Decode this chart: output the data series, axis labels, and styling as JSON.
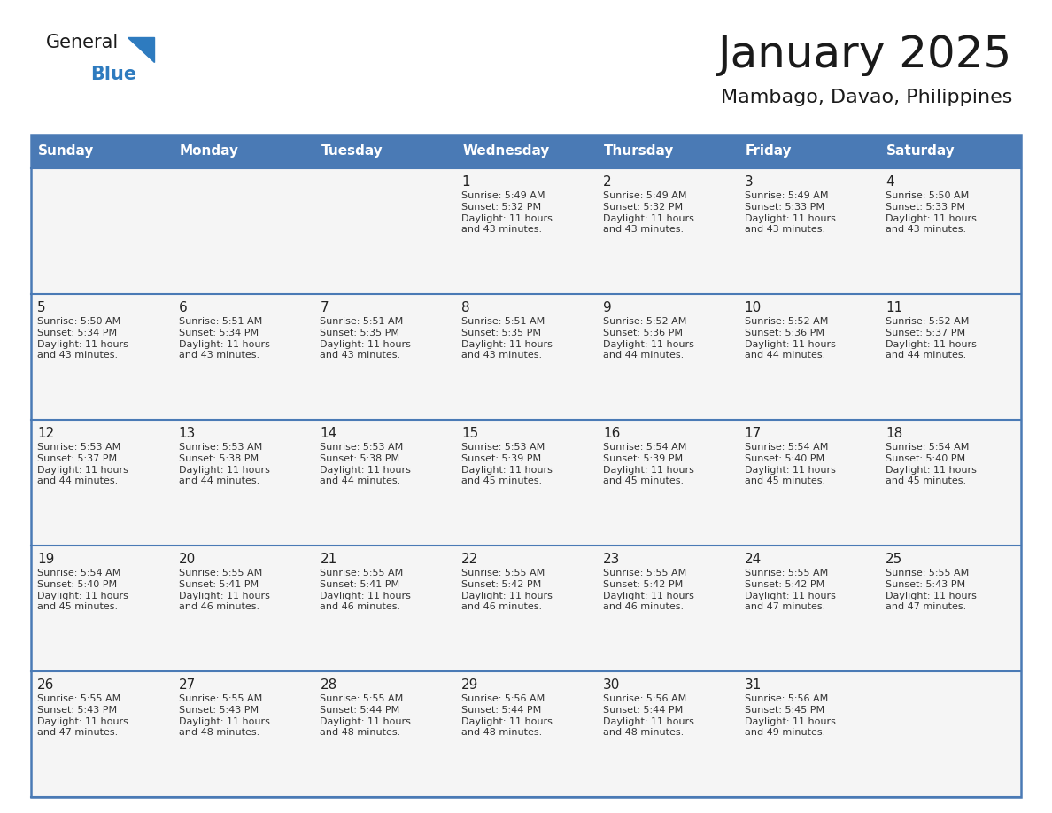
{
  "title": "January 2025",
  "subtitle": "Mambago, Davao, Philippines",
  "days_of_week": [
    "Sunday",
    "Monday",
    "Tuesday",
    "Wednesday",
    "Thursday",
    "Friday",
    "Saturday"
  ],
  "header_bg": "#4a7ab5",
  "header_text_color": "#FFFFFF",
  "row_bg": "#f5f5f5",
  "cell_text_color": "#333333",
  "day_num_color": "#222222",
  "row_border_color": "#4a7ab5",
  "title_color": "#1a1a1a",
  "subtitle_color": "#1a1a1a",
  "logo_general_color": "#1a1a1a",
  "logo_blue_color": "#2e7bbf",
  "calendar_data": [
    [
      {
        "day": 0,
        "info": ""
      },
      {
        "day": 0,
        "info": ""
      },
      {
        "day": 0,
        "info": ""
      },
      {
        "day": 1,
        "info": "Sunrise: 5:49 AM\nSunset: 5:32 PM\nDaylight: 11 hours\nand 43 minutes."
      },
      {
        "day": 2,
        "info": "Sunrise: 5:49 AM\nSunset: 5:32 PM\nDaylight: 11 hours\nand 43 minutes."
      },
      {
        "day": 3,
        "info": "Sunrise: 5:49 AM\nSunset: 5:33 PM\nDaylight: 11 hours\nand 43 minutes."
      },
      {
        "day": 4,
        "info": "Sunrise: 5:50 AM\nSunset: 5:33 PM\nDaylight: 11 hours\nand 43 minutes."
      }
    ],
    [
      {
        "day": 5,
        "info": "Sunrise: 5:50 AM\nSunset: 5:34 PM\nDaylight: 11 hours\nand 43 minutes."
      },
      {
        "day": 6,
        "info": "Sunrise: 5:51 AM\nSunset: 5:34 PM\nDaylight: 11 hours\nand 43 minutes."
      },
      {
        "day": 7,
        "info": "Sunrise: 5:51 AM\nSunset: 5:35 PM\nDaylight: 11 hours\nand 43 minutes."
      },
      {
        "day": 8,
        "info": "Sunrise: 5:51 AM\nSunset: 5:35 PM\nDaylight: 11 hours\nand 43 minutes."
      },
      {
        "day": 9,
        "info": "Sunrise: 5:52 AM\nSunset: 5:36 PM\nDaylight: 11 hours\nand 44 minutes."
      },
      {
        "day": 10,
        "info": "Sunrise: 5:52 AM\nSunset: 5:36 PM\nDaylight: 11 hours\nand 44 minutes."
      },
      {
        "day": 11,
        "info": "Sunrise: 5:52 AM\nSunset: 5:37 PM\nDaylight: 11 hours\nand 44 minutes."
      }
    ],
    [
      {
        "day": 12,
        "info": "Sunrise: 5:53 AM\nSunset: 5:37 PM\nDaylight: 11 hours\nand 44 minutes."
      },
      {
        "day": 13,
        "info": "Sunrise: 5:53 AM\nSunset: 5:38 PM\nDaylight: 11 hours\nand 44 minutes."
      },
      {
        "day": 14,
        "info": "Sunrise: 5:53 AM\nSunset: 5:38 PM\nDaylight: 11 hours\nand 44 minutes."
      },
      {
        "day": 15,
        "info": "Sunrise: 5:53 AM\nSunset: 5:39 PM\nDaylight: 11 hours\nand 45 minutes."
      },
      {
        "day": 16,
        "info": "Sunrise: 5:54 AM\nSunset: 5:39 PM\nDaylight: 11 hours\nand 45 minutes."
      },
      {
        "day": 17,
        "info": "Sunrise: 5:54 AM\nSunset: 5:40 PM\nDaylight: 11 hours\nand 45 minutes."
      },
      {
        "day": 18,
        "info": "Sunrise: 5:54 AM\nSunset: 5:40 PM\nDaylight: 11 hours\nand 45 minutes."
      }
    ],
    [
      {
        "day": 19,
        "info": "Sunrise: 5:54 AM\nSunset: 5:40 PM\nDaylight: 11 hours\nand 45 minutes."
      },
      {
        "day": 20,
        "info": "Sunrise: 5:55 AM\nSunset: 5:41 PM\nDaylight: 11 hours\nand 46 minutes."
      },
      {
        "day": 21,
        "info": "Sunrise: 5:55 AM\nSunset: 5:41 PM\nDaylight: 11 hours\nand 46 minutes."
      },
      {
        "day": 22,
        "info": "Sunrise: 5:55 AM\nSunset: 5:42 PM\nDaylight: 11 hours\nand 46 minutes."
      },
      {
        "day": 23,
        "info": "Sunrise: 5:55 AM\nSunset: 5:42 PM\nDaylight: 11 hours\nand 46 minutes."
      },
      {
        "day": 24,
        "info": "Sunrise: 5:55 AM\nSunset: 5:42 PM\nDaylight: 11 hours\nand 47 minutes."
      },
      {
        "day": 25,
        "info": "Sunrise: 5:55 AM\nSunset: 5:43 PM\nDaylight: 11 hours\nand 47 minutes."
      }
    ],
    [
      {
        "day": 26,
        "info": "Sunrise: 5:55 AM\nSunset: 5:43 PM\nDaylight: 11 hours\nand 47 minutes."
      },
      {
        "day": 27,
        "info": "Sunrise: 5:55 AM\nSunset: 5:43 PM\nDaylight: 11 hours\nand 48 minutes."
      },
      {
        "day": 28,
        "info": "Sunrise: 5:55 AM\nSunset: 5:44 PM\nDaylight: 11 hours\nand 48 minutes."
      },
      {
        "day": 29,
        "info": "Sunrise: 5:56 AM\nSunset: 5:44 PM\nDaylight: 11 hours\nand 48 minutes."
      },
      {
        "day": 30,
        "info": "Sunrise: 5:56 AM\nSunset: 5:44 PM\nDaylight: 11 hours\nand 48 minutes."
      },
      {
        "day": 31,
        "info": "Sunrise: 5:56 AM\nSunset: 5:45 PM\nDaylight: 11 hours\nand 49 minutes."
      },
      {
        "day": 0,
        "info": ""
      }
    ]
  ]
}
